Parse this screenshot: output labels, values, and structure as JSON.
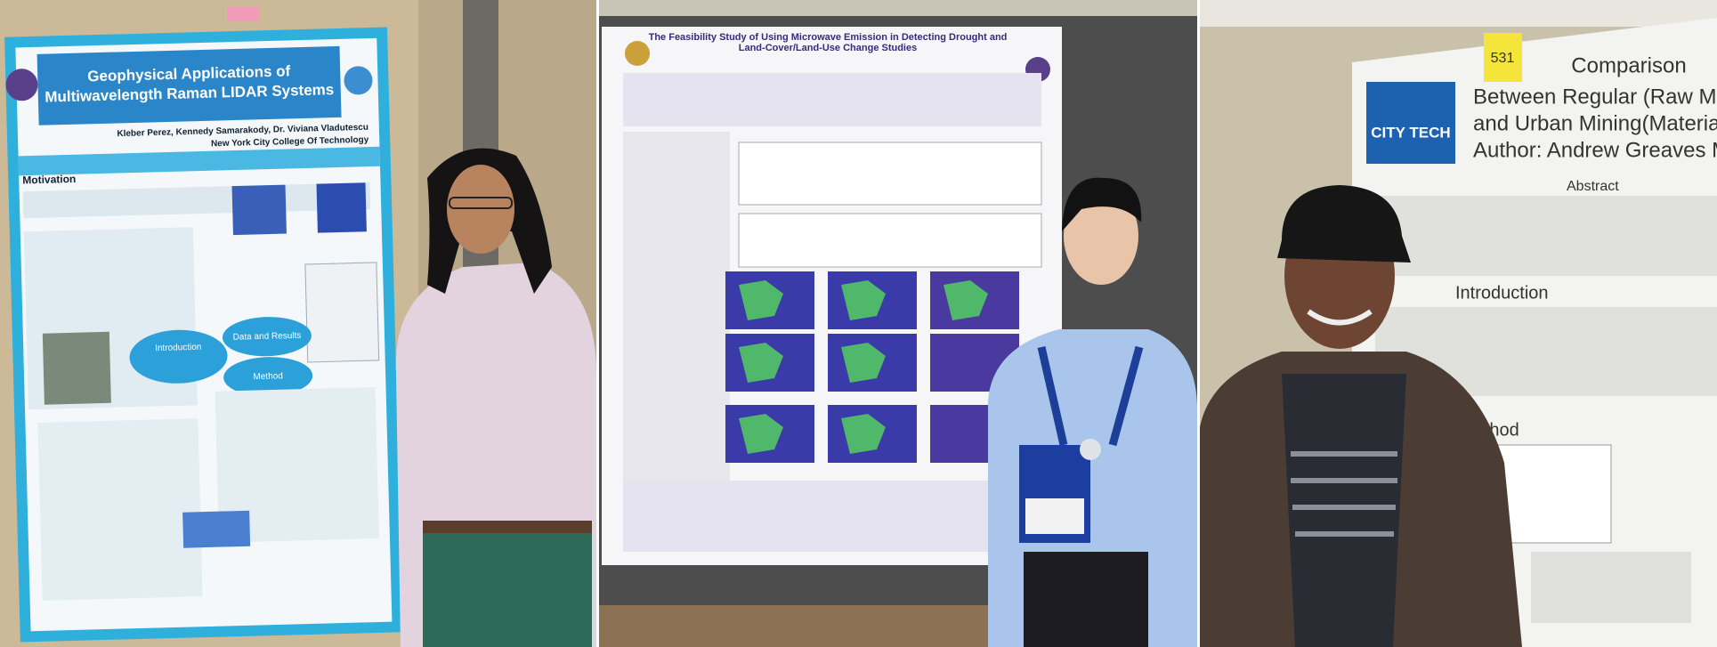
{
  "panels": [
    {
      "poster": {
        "title": "Geophysical Applications of Multiwavelength Raman LIDAR Systems",
        "authors": "Kleber Perez, Kennedy Samarakody, Dr. Viviana Vladutescu",
        "institution": "New York City College Of Technology",
        "sections": [
          "Motivation",
          "Introduction",
          "Data and Results",
          "Method"
        ]
      }
    },
    {
      "poster": {
        "title": "The Feasibility Study of Using Microwave Emission in Detecting Drought and Land-Cover/Land-Use Change Studies"
      }
    },
    {
      "poster": {
        "sticker": "531",
        "logo": "CITY TECH",
        "title": "Comparison",
        "subtitle_1": "Between Regular (Raw Material Extracti",
        "subtitle_2": "and Urban Mining(Material Recovery) Met",
        "authors": "Author: Andrew Greaves  Mentor: Prof Nak",
        "sections": [
          "Abstract",
          "Introduction",
          "Method"
        ]
      }
    }
  ]
}
